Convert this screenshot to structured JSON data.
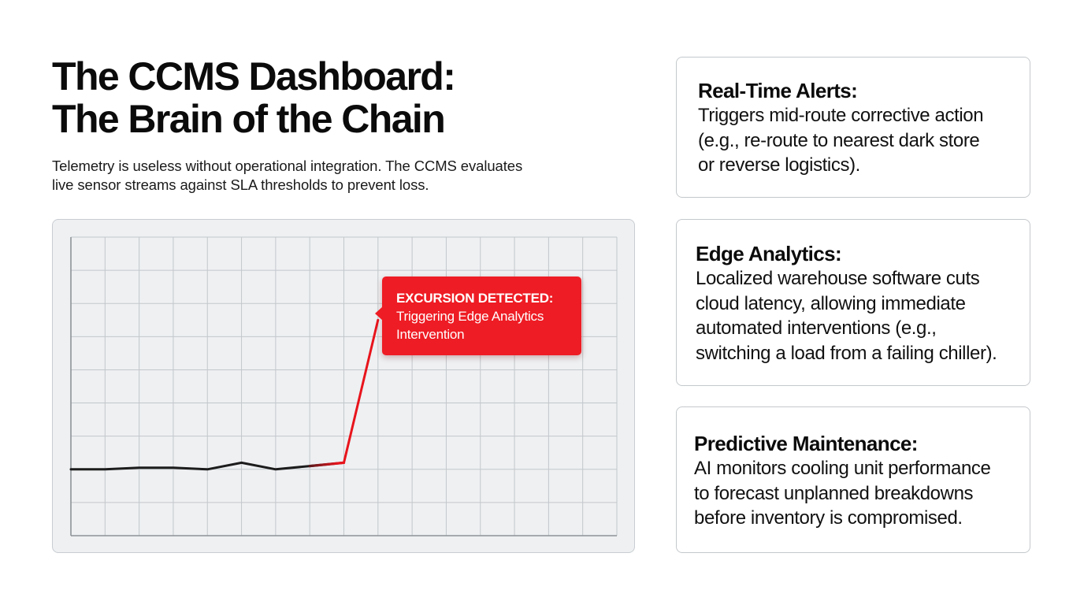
{
  "header": {
    "title_line1": "The CCMS Dashboard:",
    "title_line2": "The Brain of the Chain",
    "subtitle_line1": "Telemetry is useless without operational integration. The CCMS evaluates",
    "subtitle_line2": "live sensor streams against SLA thresholds to prevent loss."
  },
  "chart_data": {
    "type": "line",
    "title": "",
    "xlabel": "",
    "ylabel": "",
    "grid": true,
    "x": [
      0,
      1,
      2,
      3,
      4,
      5,
      6,
      7,
      8,
      9
    ],
    "series": [
      {
        "values": [
          2.0,
          2.0,
          2.05,
          2.05,
          2.0,
          2.2,
          2.0,
          2.1,
          2.2,
          6.5
        ],
        "color": "#1c1c1c",
        "alert_color": "#e8141c"
      }
    ],
    "xlim": [
      0,
      16
    ],
    "ylim": [
      0,
      9
    ],
    "annotation": {
      "title": "EXCURSION DETECTED:",
      "line1": "Triggering Edge Analytics",
      "line2": "Intervention",
      "color": "#ee1c24"
    }
  },
  "cards": [
    {
      "title": "Real-Time Alerts:",
      "lines": [
        "Triggers mid-route corrective action",
        "(e.g., re-route to nearest dark store",
        "or reverse logistics)."
      ]
    },
    {
      "title": "Edge Analytics:",
      "lines": [
        "Localized warehouse software cuts",
        "cloud latency, allowing immediate",
        "automated interventions (e.g.,",
        "switching a load from a failing chiller)."
      ]
    },
    {
      "title": "Predictive Maintenance:",
      "lines": [
        "AI monitors cooling unit performance",
        "to forecast unplanned breakdowns",
        "before inventory is compromised."
      ]
    }
  ]
}
